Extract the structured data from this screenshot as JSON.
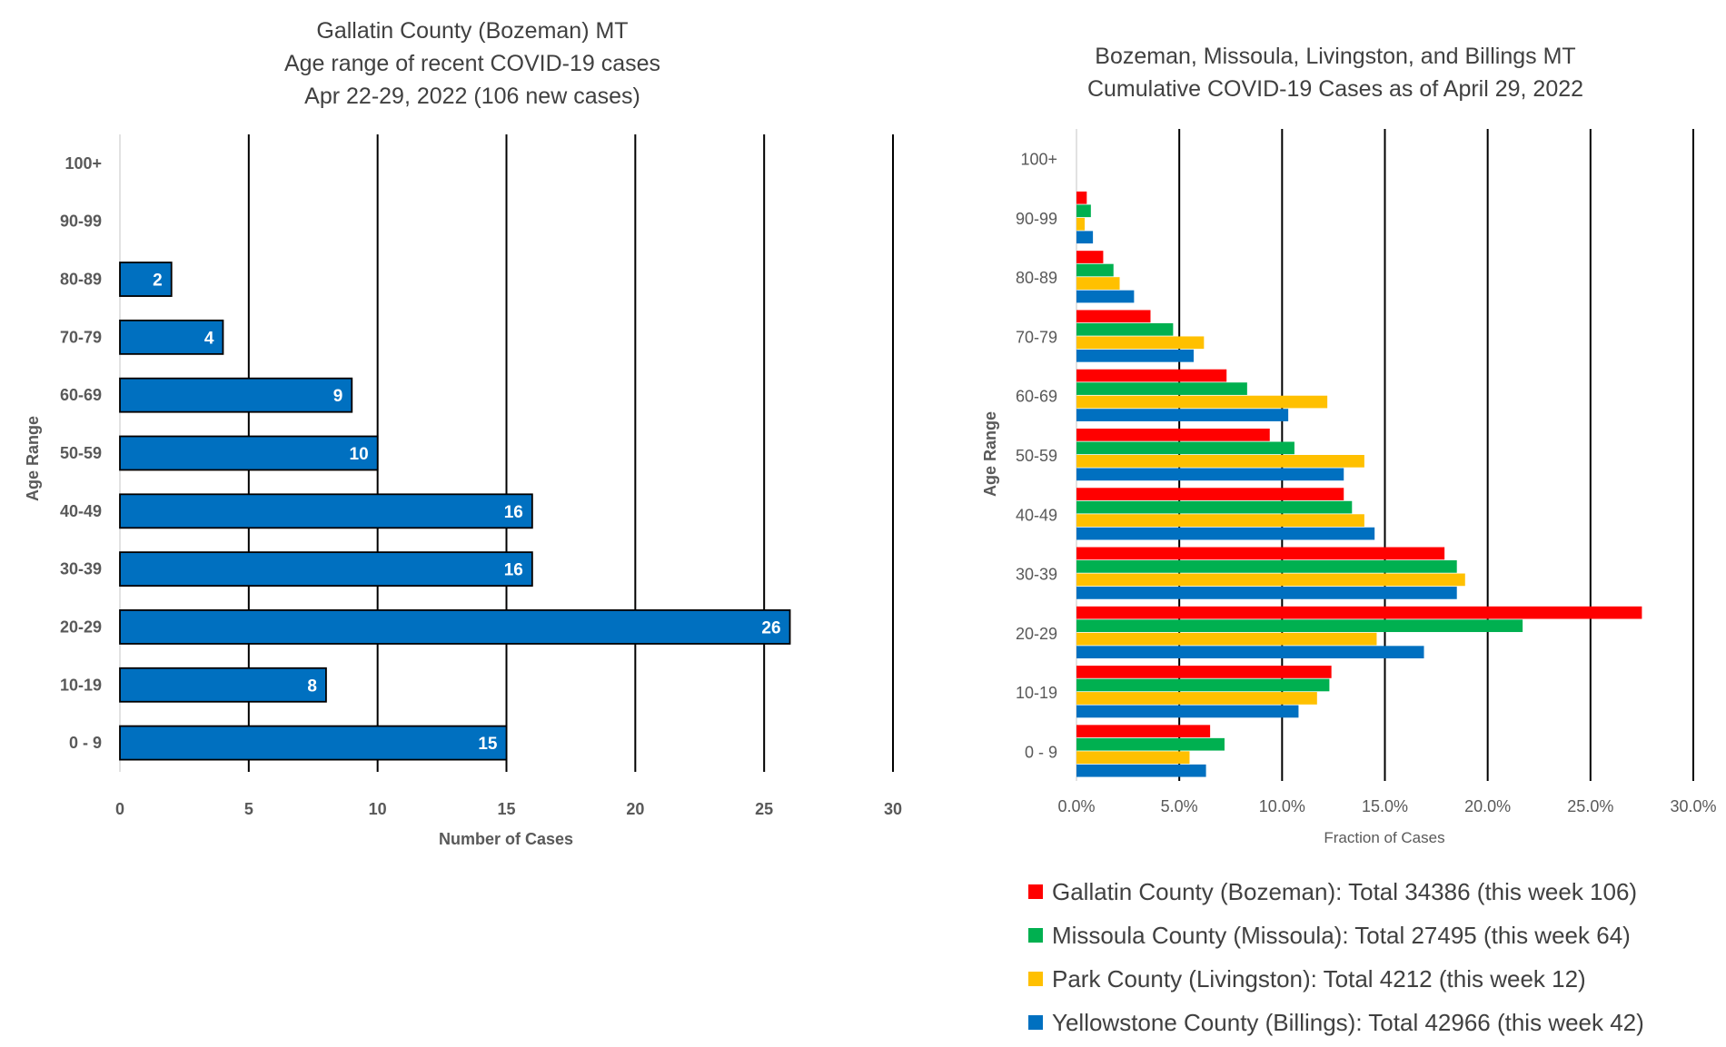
{
  "colors": {
    "bar_left": "#0070C0",
    "gallatin": "#FF0000",
    "missoula": "#00B050",
    "park": "#FFC000",
    "yellowstone": "#0070C0"
  },
  "chart_data": [
    {
      "type": "bar",
      "orientation": "horizontal",
      "title_lines": [
        "Gallatin County (Bozeman) MT",
        "Age range of recent COVID-19 cases",
        "Apr 22-29, 2022 (106 new cases)"
      ],
      "categories": [
        "100+",
        "90-99",
        "80-89",
        "70-79",
        "60-69",
        "50-59",
        "40-49",
        "30-39",
        "20-29",
        "10-19",
        "0 - 9"
      ],
      "values": [
        null,
        null,
        2,
        4,
        9,
        10,
        16,
        16,
        26,
        8,
        15
      ],
      "data_labels": [
        "",
        "",
        "2",
        "4",
        "9",
        "10",
        "16",
        "16",
        "26",
        "8",
        "15"
      ],
      "xlabel": "Number of Cases",
      "ylabel": "Age Range",
      "xlim": [
        0,
        30
      ],
      "xticks": [
        "0",
        "5",
        "10",
        "15",
        "20",
        "25",
        "30"
      ],
      "grid": "vertical"
    },
    {
      "type": "bar",
      "orientation": "horizontal",
      "title_lines": [
        "Bozeman, Missoula, Livingston, and Billings MT",
        "Cumulative COVID-19 Cases as of April 29, 2022"
      ],
      "categories": [
        "100+",
        "90-99",
        "80-89",
        "70-79",
        "60-69",
        "50-59",
        "40-49",
        "30-39",
        "20-29",
        "10-19",
        "0 - 9"
      ],
      "series": [
        {
          "name": "Gallatin County (Bozeman): Total 34386 (this week 106)",
          "values": [
            0.0,
            0.5,
            1.3,
            3.6,
            7.3,
            9.4,
            13.0,
            17.9,
            27.5,
            12.4,
            6.5
          ]
        },
        {
          "name": "Missoula County (Missoula): Total 27495 (this week 64)",
          "values": [
            0.0,
            0.7,
            1.8,
            4.7,
            8.3,
            10.6,
            13.4,
            18.5,
            21.7,
            12.3,
            7.2
          ]
        },
        {
          "name": "Park County (Livingston): Total 4212 (this week 12)",
          "values": [
            0.0,
            0.4,
            2.1,
            6.2,
            12.2,
            14.0,
            14.0,
            18.9,
            14.6,
            11.7,
            5.5
          ]
        },
        {
          "name": "Yellowstone County (Billings): Total 42966 (this week 42)",
          "values": [
            0.0,
            0.8,
            2.8,
            5.7,
            10.3,
            13.0,
            14.5,
            18.5,
            16.9,
            10.8,
            6.3
          ]
        }
      ],
      "xlabel": "Fraction of Cases",
      "ylabel": "Age Range",
      "xlim": [
        0,
        30
      ],
      "xticks": [
        "0.0%",
        "5.0%",
        "10.0%",
        "15.0%",
        "20.0%",
        "25.0%",
        "30.0%"
      ],
      "grid": "vertical",
      "legend_position": "bottom"
    }
  ]
}
